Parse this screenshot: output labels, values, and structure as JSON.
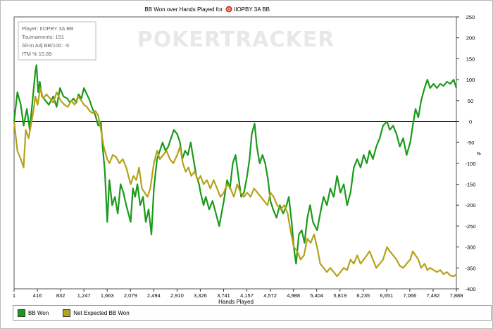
{
  "chart_data": {
    "type": "line",
    "title": "BB Won over Hands Played for",
    "player_name": "IIOPBY 3A BB",
    "xlabel": "Hands Played",
    "ylabel": "#",
    "xlim": [
      1,
      7888
    ],
    "ylim": [
      -400,
      250
    ],
    "x_ticks": [
      "1",
      "416",
      "832",
      "1,247",
      "1,663",
      "2,079",
      "2,494",
      "2,910",
      "3,326",
      "3,741",
      "4,157",
      "4,572",
      "4,988",
      "5,404",
      "5,819",
      "6,235",
      "6,651",
      "7,066",
      "7,482",
      "7,888"
    ],
    "y_ticks": [
      "250",
      "200",
      "150",
      "100",
      "50",
      "0",
      "-50",
      "-100",
      "-150",
      "-200",
      "-250",
      "-300",
      "-350",
      "-400"
    ],
    "watermark": "POKERTRACKER",
    "info_box": [
      "Player: IIOPBY 3A BB",
      "Tournaments: 151",
      "All-In Adj BB/100: -5",
      "ITM % 15.89"
    ],
    "series": [
      {
        "name": "BB Won",
        "color": "#1a9a1a",
        "points": [
          [
            1,
            0
          ],
          [
            60,
            70
          ],
          [
            120,
            40
          ],
          [
            170,
            -10
          ],
          [
            230,
            30
          ],
          [
            280,
            -20
          ],
          [
            330,
            50
          ],
          [
            380,
            120
          ],
          [
            400,
            135
          ],
          [
            430,
            70
          ],
          [
            460,
            95
          ],
          [
            500,
            60
          ],
          [
            560,
            50
          ],
          [
            620,
            40
          ],
          [
            700,
            60
          ],
          [
            760,
            35
          ],
          [
            820,
            80
          ],
          [
            880,
            60
          ],
          [
            950,
            55
          ],
          [
            1000,
            45
          ],
          [
            1060,
            55
          ],
          [
            1110,
            45
          ],
          [
            1150,
            65
          ],
          [
            1200,
            55
          ],
          [
            1247,
            80
          ],
          [
            1300,
            65
          ],
          [
            1350,
            50
          ],
          [
            1400,
            30
          ],
          [
            1450,
            15
          ],
          [
            1500,
            -10
          ],
          [
            1550,
            0
          ],
          [
            1580,
            -60
          ],
          [
            1620,
            -120
          ],
          [
            1663,
            -240
          ],
          [
            1700,
            -140
          ],
          [
            1750,
            -200
          ],
          [
            1800,
            -180
          ],
          [
            1850,
            -220
          ],
          [
            1900,
            -150
          ],
          [
            1950,
            -170
          ],
          [
            2000,
            -200
          ],
          [
            2079,
            -240
          ],
          [
            2120,
            -160
          ],
          [
            2160,
            -180
          ],
          [
            2200,
            -150
          ],
          [
            2250,
            -200
          ],
          [
            2300,
            -180
          ],
          [
            2350,
            -240
          ],
          [
            2400,
            -210
          ],
          [
            2450,
            -270
          ],
          [
            2494,
            -160
          ],
          [
            2550,
            -90
          ],
          [
            2600,
            -70
          ],
          [
            2650,
            -50
          ],
          [
            2700,
            -70
          ],
          [
            2750,
            -60
          ],
          [
            2800,
            -40
          ],
          [
            2850,
            -20
          ],
          [
            2910,
            -30
          ],
          [
            2960,
            -50
          ],
          [
            3000,
            -90
          ],
          [
            3050,
            -70
          ],
          [
            3100,
            -80
          ],
          [
            3150,
            -50
          ],
          [
            3200,
            -90
          ],
          [
            3250,
            -130
          ],
          [
            3300,
            -150
          ],
          [
            3326,
            -170
          ],
          [
            3380,
            -200
          ],
          [
            3420,
            -180
          ],
          [
            3480,
            -210
          ],
          [
            3540,
            -190
          ],
          [
            3600,
            -220
          ],
          [
            3660,
            -250
          ],
          [
            3741,
            -190
          ],
          [
            3800,
            -140
          ],
          [
            3850,
            -160
          ],
          [
            3900,
            -100
          ],
          [
            3950,
            -80
          ],
          [
            4000,
            -130
          ],
          [
            4050,
            -180
          ],
          [
            4100,
            -170
          ],
          [
            4157,
            -130
          ],
          [
            4200,
            -90
          ],
          [
            4240,
            -30
          ],
          [
            4290,
            -5
          ],
          [
            4330,
            -60
          ],
          [
            4380,
            -100
          ],
          [
            4430,
            -80
          ],
          [
            4480,
            -100
          ],
          [
            4530,
            -140
          ],
          [
            4572,
            -190
          ],
          [
            4620,
            -210
          ],
          [
            4680,
            -230
          ],
          [
            4740,
            -200
          ],
          [
            4800,
            -220
          ],
          [
            4860,
            -200
          ],
          [
            4900,
            -180
          ],
          [
            4950,
            -240
          ],
          [
            4988,
            -300
          ],
          [
            5030,
            -340
          ],
          [
            5080,
            -270
          ],
          [
            5130,
            -260
          ],
          [
            5180,
            -290
          ],
          [
            5230,
            -230
          ],
          [
            5280,
            -200
          ],
          [
            5330,
            -240
          ],
          [
            5404,
            -260
          ],
          [
            5460,
            -220
          ],
          [
            5520,
            -180
          ],
          [
            5580,
            -200
          ],
          [
            5640,
            -160
          ],
          [
            5700,
            -180
          ],
          [
            5760,
            -130
          ],
          [
            5819,
            -170
          ],
          [
            5880,
            -150
          ],
          [
            5940,
            -200
          ],
          [
            6000,
            -170
          ],
          [
            6060,
            -110
          ],
          [
            6120,
            -90
          ],
          [
            6180,
            -110
          ],
          [
            6235,
            -80
          ],
          [
            6290,
            -100
          ],
          [
            6340,
            -70
          ],
          [
            6400,
            -90
          ],
          [
            6460,
            -60
          ],
          [
            6520,
            -40
          ],
          [
            6580,
            -10
          ],
          [
            6651,
            0
          ],
          [
            6700,
            -20
          ],
          [
            6760,
            -10
          ],
          [
            6820,
            -30
          ],
          [
            6880,
            -60
          ],
          [
            6940,
            -40
          ],
          [
            7000,
            -80
          ],
          [
            7066,
            -50
          ],
          [
            7110,
            -10
          ],
          [
            7160,
            30
          ],
          [
            7210,
            10
          ],
          [
            7260,
            50
          ],
          [
            7320,
            80
          ],
          [
            7370,
            100
          ],
          [
            7420,
            80
          ],
          [
            7482,
            90
          ],
          [
            7540,
            80
          ],
          [
            7600,
            90
          ],
          [
            7660,
            85
          ],
          [
            7720,
            95
          ],
          [
            7780,
            90
          ],
          [
            7840,
            100
          ],
          [
            7888,
            80
          ]
        ]
      },
      {
        "name": "Net Expected BB Won",
        "color": "#b5a21a",
        "points": [
          [
            1,
            0
          ],
          [
            60,
            -70
          ],
          [
            120,
            -90
          ],
          [
            170,
            -110
          ],
          [
            210,
            -20
          ],
          [
            260,
            -40
          ],
          [
            300,
            -10
          ],
          [
            340,
            20
          ],
          [
            380,
            60
          ],
          [
            420,
            40
          ],
          [
            470,
            80
          ],
          [
            520,
            55
          ],
          [
            580,
            65
          ],
          [
            640,
            55
          ],
          [
            700,
            45
          ],
          [
            760,
            70
          ],
          [
            832,
            50
          ],
          [
            900,
            40
          ],
          [
            960,
            35
          ],
          [
            1020,
            50
          ],
          [
            1080,
            40
          ],
          [
            1140,
            60
          ],
          [
            1200,
            50
          ],
          [
            1247,
            40
          ],
          [
            1300,
            35
          ],
          [
            1350,
            25
          ],
          [
            1400,
            20
          ],
          [
            1450,
            25
          ],
          [
            1500,
            15
          ],
          [
            1550,
            -20
          ],
          [
            1600,
            -60
          ],
          [
            1663,
            -90
          ],
          [
            1700,
            -100
          ],
          [
            1760,
            -80
          ],
          [
            1820,
            -85
          ],
          [
            1880,
            -100
          ],
          [
            1940,
            -90
          ],
          [
            2000,
            -110
          ],
          [
            2079,
            -150
          ],
          [
            2130,
            -130
          ],
          [
            2180,
            -140
          ],
          [
            2230,
            -110
          ],
          [
            2280,
            -160
          ],
          [
            2330,
            -170
          ],
          [
            2380,
            -180
          ],
          [
            2430,
            -160
          ],
          [
            2494,
            -100
          ],
          [
            2550,
            -70
          ],
          [
            2600,
            -90
          ],
          [
            2660,
            -80
          ],
          [
            2720,
            -70
          ],
          [
            2780,
            -90
          ],
          [
            2840,
            -100
          ],
          [
            2910,
            -80
          ],
          [
            2960,
            -60
          ],
          [
            3010,
            -100
          ],
          [
            3060,
            -120
          ],
          [
            3110,
            -110
          ],
          [
            3160,
            -130
          ],
          [
            3220,
            -120
          ],
          [
            3280,
            -140
          ],
          [
            3326,
            -130
          ],
          [
            3380,
            -150
          ],
          [
            3440,
            -140
          ],
          [
            3500,
            -160
          ],
          [
            3560,
            -140
          ],
          [
            3620,
            -160
          ],
          [
            3680,
            -180
          ],
          [
            3741,
            -170
          ],
          [
            3800,
            -150
          ],
          [
            3860,
            -160
          ],
          [
            3920,
            -180
          ],
          [
            3980,
            -150
          ],
          [
            4040,
            -170
          ],
          [
            4100,
            -180
          ],
          [
            4157,
            -170
          ],
          [
            4220,
            -180
          ],
          [
            4280,
            -160
          ],
          [
            4340,
            -170
          ],
          [
            4400,
            -180
          ],
          [
            4460,
            -190
          ],
          [
            4520,
            -200
          ],
          [
            4572,
            -170
          ],
          [
            4630,
            -180
          ],
          [
            4690,
            -200
          ],
          [
            4760,
            -210
          ],
          [
            4820,
            -200
          ],
          [
            4880,
            -220
          ],
          [
            4930,
            -260
          ],
          [
            4988,
            -300
          ],
          [
            5050,
            -310
          ],
          [
            5110,
            -330
          ],
          [
            5170,
            -320
          ],
          [
            5230,
            -280
          ],
          [
            5290,
            -290
          ],
          [
            5350,
            -270
          ],
          [
            5404,
            -300
          ],
          [
            5460,
            -340
          ],
          [
            5520,
            -350
          ],
          [
            5580,
            -360
          ],
          [
            5640,
            -350
          ],
          [
            5700,
            -360
          ],
          [
            5760,
            -370
          ],
          [
            5819,
            -360
          ],
          [
            5880,
            -350
          ],
          [
            5940,
            -355
          ],
          [
            6000,
            -330
          ],
          [
            6060,
            -340
          ],
          [
            6120,
            -320
          ],
          [
            6180,
            -340
          ],
          [
            6235,
            -330
          ],
          [
            6290,
            -320
          ],
          [
            6340,
            -310
          ],
          [
            6400,
            -330
          ],
          [
            6460,
            -350
          ],
          [
            6520,
            -340
          ],
          [
            6580,
            -330
          ],
          [
            6651,
            -300
          ],
          [
            6700,
            -310
          ],
          [
            6760,
            -320
          ],
          [
            6820,
            -330
          ],
          [
            6880,
            -345
          ],
          [
            6940,
            -350
          ],
          [
            7000,
            -340
          ],
          [
            7066,
            -330
          ],
          [
            7110,
            -310
          ],
          [
            7160,
            -320
          ],
          [
            7210,
            -330
          ],
          [
            7260,
            -350
          ],
          [
            7320,
            -340
          ],
          [
            7370,
            -355
          ],
          [
            7420,
            -350
          ],
          [
            7482,
            -355
          ],
          [
            7540,
            -360
          ],
          [
            7600,
            -355
          ],
          [
            7660,
            -365
          ],
          [
            7720,
            -360
          ],
          [
            7780,
            -368
          ],
          [
            7840,
            -370
          ],
          [
            7888,
            -365
          ]
        ]
      }
    ]
  }
}
